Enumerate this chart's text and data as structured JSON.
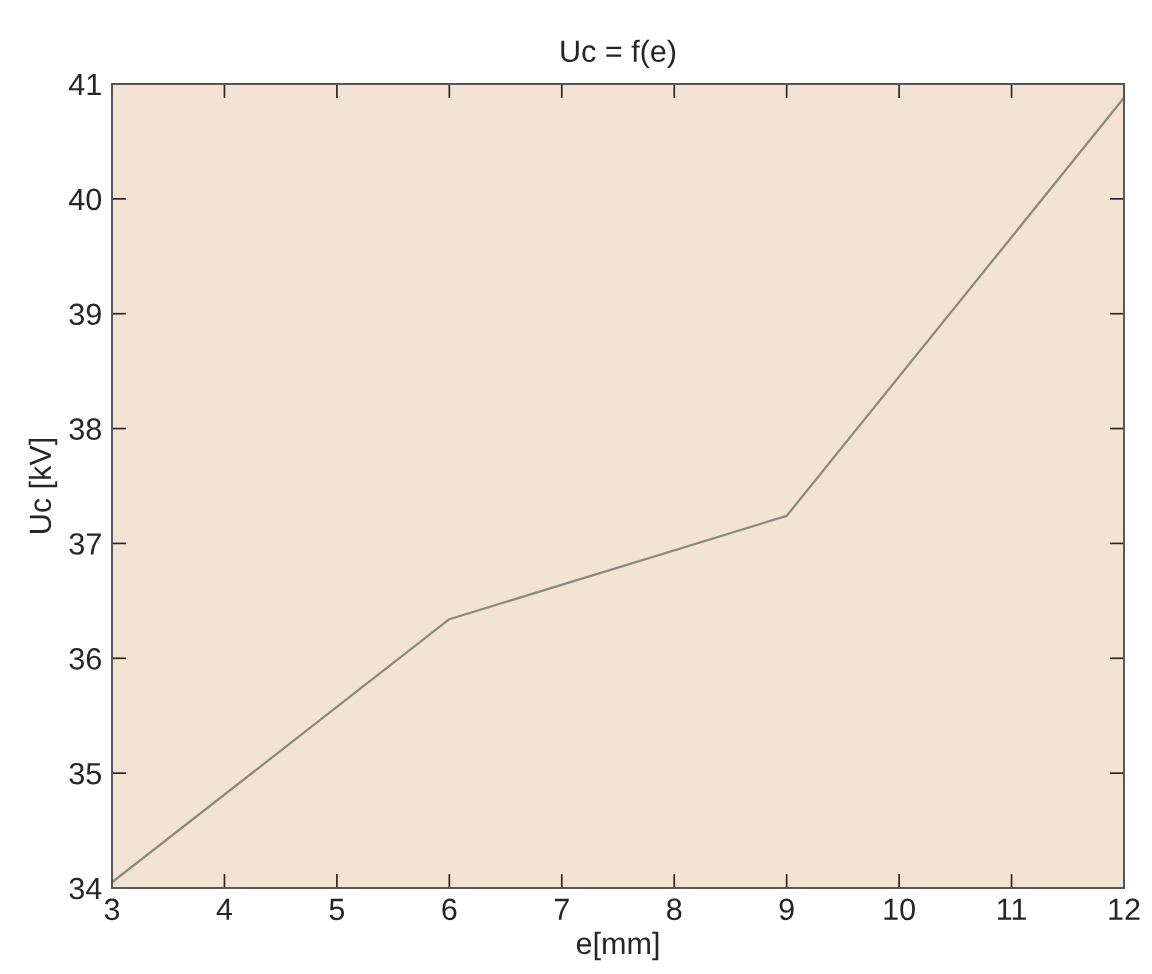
{
  "chart_data": {
    "type": "line",
    "title": "Uc = f(e)",
    "xlabel": "e[mm]",
    "ylabel": "Uc [kV]",
    "x": [
      3,
      6,
      9,
      12
    ],
    "series": [
      {
        "color": "#8a8a7e",
        "values": [
          34.05,
          36.34,
          37.24,
          40.88
        ]
      }
    ],
    "xlim": [
      3,
      12
    ],
    "xticks": [
      3,
      4,
      5,
      6,
      7,
      8,
      9,
      10,
      11,
      12
    ],
    "ylim": [
      34,
      41
    ],
    "yticks": [
      34,
      35,
      36,
      37,
      38,
      39,
      40,
      41
    ],
    "grid": false,
    "marker": "none",
    "line_style": "solid",
    "legend": false
  }
}
